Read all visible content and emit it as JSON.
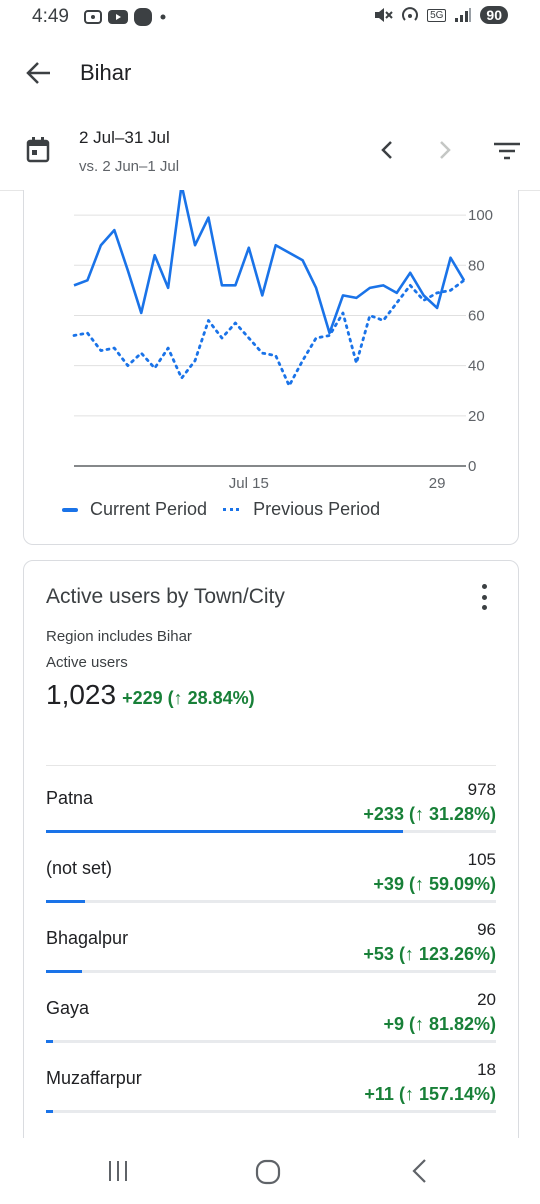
{
  "status": {
    "time": "4:49",
    "network": "5G",
    "battery": "90"
  },
  "header": {
    "title": "Bihar"
  },
  "date_bar": {
    "range": "2 Jul–31 Jul",
    "compare": "vs. 2 Jun–1 Jul"
  },
  "chart_data": {
    "type": "line",
    "x_tick_labels": [
      "Jul 15",
      "29"
    ],
    "y_ticks": [
      "0",
      "20",
      "40",
      "60",
      "80",
      "100"
    ],
    "ylim": [
      0,
      110
    ],
    "grid": true,
    "legend_position": "bottom",
    "series": [
      {
        "name": "Current Period",
        "style": "solid",
        "color": "#1a73e8",
        "values": [
          72,
          74,
          88,
          94,
          78,
          61,
          84,
          71,
          112,
          88,
          99,
          72,
          72,
          87,
          68,
          88,
          85,
          82,
          71,
          53,
          68,
          67,
          71,
          72,
          69,
          77,
          68,
          63,
          83,
          74
        ]
      },
      {
        "name": "Previous Period",
        "style": "dotted",
        "color": "#1a73e8",
        "values": [
          52,
          53,
          46,
          47,
          40,
          45,
          39,
          47,
          35,
          42,
          58,
          51,
          57,
          51,
          45,
          44,
          32,
          42,
          51,
          52,
          61,
          41,
          60,
          58,
          65,
          72,
          66,
          69,
          70,
          74
        ]
      }
    ]
  },
  "city_card": {
    "title": "Active users by Town/City",
    "region_note": "Region includes Bihar",
    "metric_label": "Active users",
    "total": "1,023",
    "total_delta": "+229 (↑ 28.84%)",
    "rows": [
      {
        "name": "Patna",
        "value": "978",
        "delta": "+233 (↑ 31.28%)",
        "share": 0.793
      },
      {
        "name": "(not set)",
        "value": "105",
        "delta": "+39 (↑ 59.09%)",
        "share": 0.086
      },
      {
        "name": "Bhagalpur",
        "value": "96",
        "delta": "+53 (↑ 123.26%)",
        "share": 0.08
      },
      {
        "name": "Gaya",
        "value": "20",
        "delta": "+9 (↑ 81.82%)",
        "share": 0.016
      },
      {
        "name": "Muzaffarpur",
        "value": "18",
        "delta": "+11 (↑ 157.14%)",
        "share": 0.015
      }
    ]
  }
}
